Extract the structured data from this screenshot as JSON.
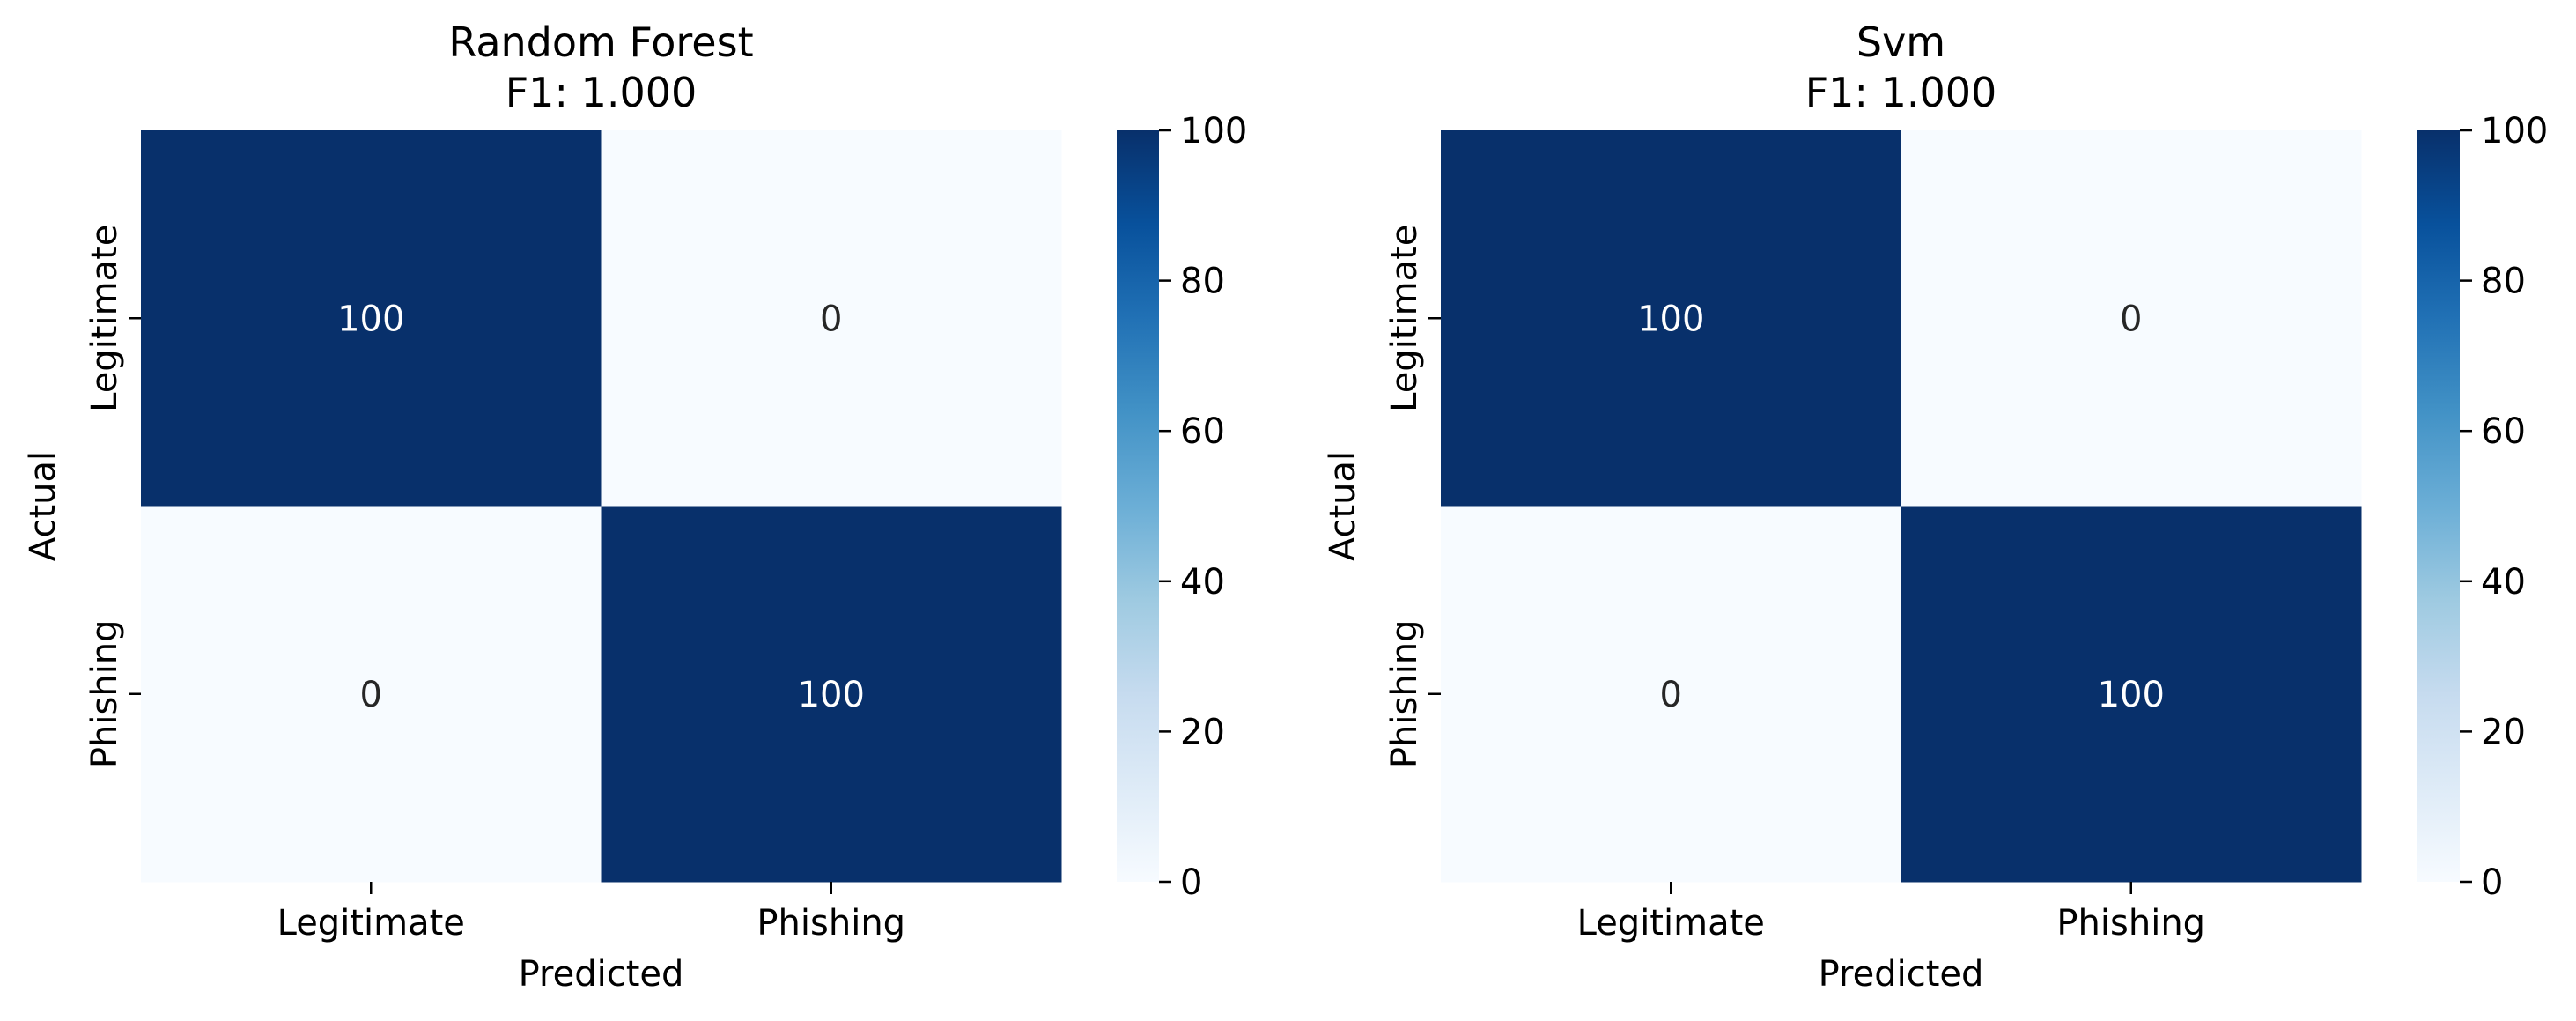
{
  "chart_data": [
    {
      "type": "heatmap",
      "title": "Random Forest",
      "subtitle": "F1: 1.000",
      "xlabel": "Predicted",
      "ylabel": "Actual",
      "x_categories": [
        "Legitimate",
        "Phishing"
      ],
      "y_categories": [
        "Legitimate",
        "Phishing"
      ],
      "values": [
        [
          100,
          0
        ],
        [
          0,
          100
        ]
      ],
      "colormap": "Blues",
      "colorbar": {
        "min": 0,
        "max": 100,
        "ticks": [
          0,
          20,
          40,
          60,
          80,
          100
        ]
      },
      "grid": false
    },
    {
      "type": "heatmap",
      "title": "Svm",
      "subtitle": "F1: 1.000",
      "xlabel": "Predicted",
      "ylabel": "Actual",
      "x_categories": [
        "Legitimate",
        "Phishing"
      ],
      "y_categories": [
        "Legitimate",
        "Phishing"
      ],
      "values": [
        [
          100,
          0
        ],
        [
          0,
          100
        ]
      ],
      "colormap": "Blues",
      "colorbar": {
        "min": 0,
        "max": 100,
        "ticks": [
          0,
          20,
          40,
          60,
          80,
          100
        ]
      },
      "grid": false
    }
  ],
  "colors": {
    "low": "#f7fbff",
    "high": "#08306b",
    "text_dark_cell": "#ffffff",
    "text_light_cell": "#262626",
    "axis_text": "#000000"
  }
}
